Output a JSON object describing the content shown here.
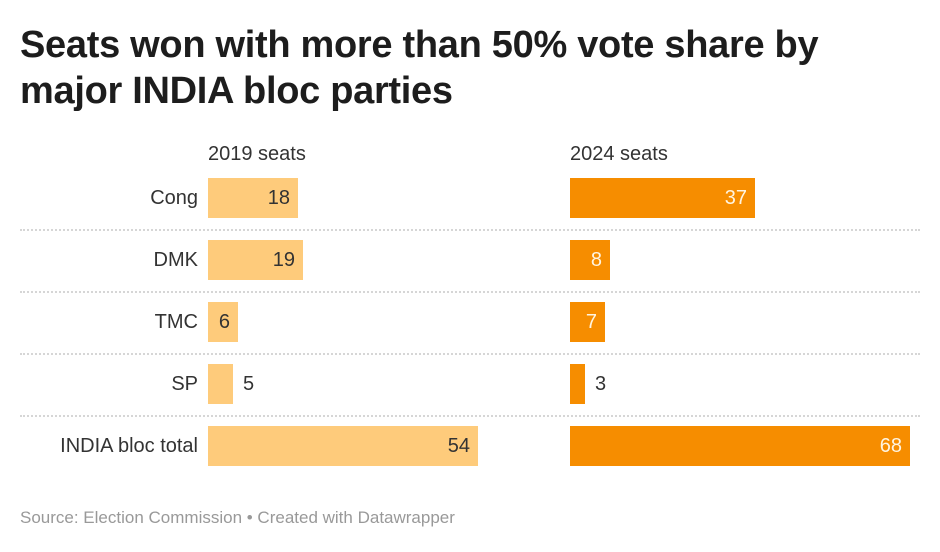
{
  "chart_data": {
    "type": "bar",
    "title": "Seats won with more than 50% vote share by major INDIA bloc parties",
    "categories": [
      "Cong",
      "DMK",
      "TMC",
      "SP",
      "INDIA bloc total"
    ],
    "series": [
      {
        "name": "2019 seats",
        "values": [
          18,
          19,
          6,
          5,
          54
        ],
        "color": "#fecb7b",
        "label_color": "#333333"
      },
      {
        "name": "2024 seats",
        "values": [
          37,
          8,
          7,
          3,
          68
        ],
        "color": "#f68d00",
        "label_color": "#fff4e0"
      }
    ],
    "grid": false
  },
  "footer": {
    "source": "Source: Election Commission • Created with Datawrapper"
  }
}
